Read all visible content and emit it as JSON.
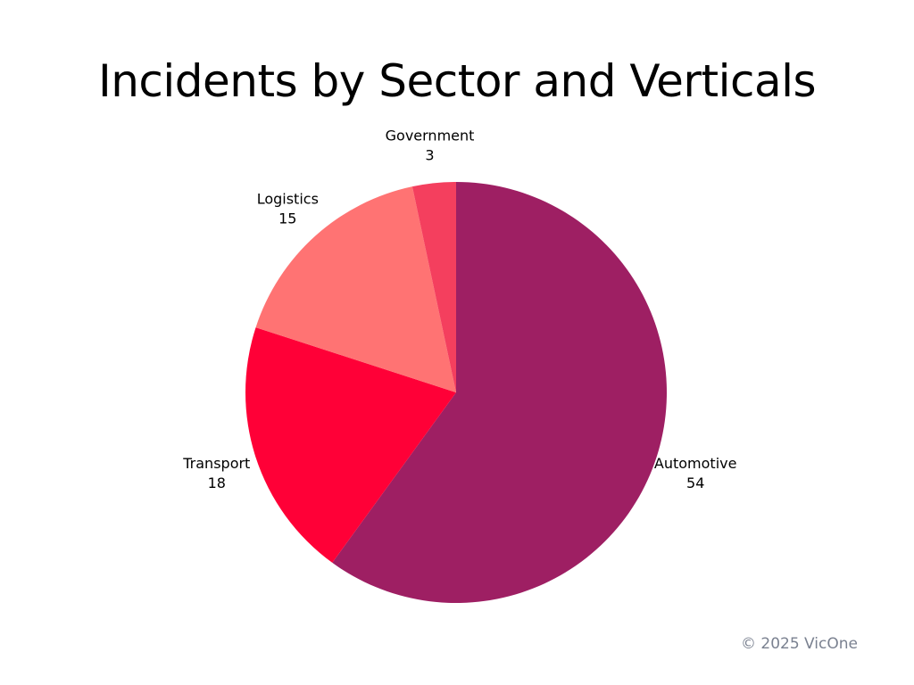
{
  "chart_data": {
    "type": "pie",
    "title": "Incidents by Sector and Verticals",
    "start_angle": "top",
    "direction": "clockwise",
    "slices": [
      {
        "label": "Automotive",
        "value": 54,
        "color": "#9E1F63"
      },
      {
        "label": "Transport",
        "value": 18,
        "color": "#FF0037"
      },
      {
        "label": "Logistics",
        "value": 15,
        "color": "#FF7373"
      },
      {
        "label": "Government",
        "value": 3,
        "color": "#F43F5E"
      }
    ]
  },
  "footer": {
    "copyright": "© 2025 VicOne"
  }
}
